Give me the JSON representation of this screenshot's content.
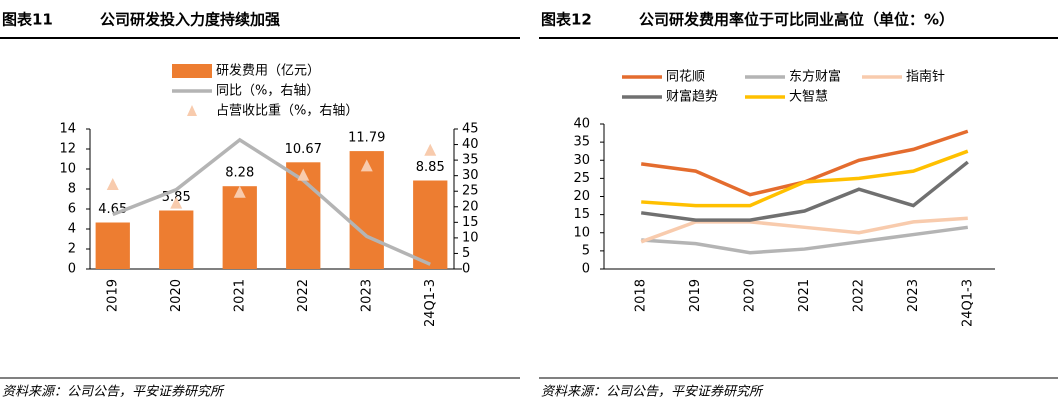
{
  "chart_data": [
    {
      "type": "bar",
      "figure_label": "图表11",
      "title": "公司研发投入力度持续加强",
      "source": "资料来源：公司公告，平安证券研究所",
      "categories": [
        "2019",
        "2020",
        "2021",
        "2022",
        "2023",
        "24Q1-3"
      ],
      "series": [
        {
          "name": "研发费用（亿元）",
          "type": "bar",
          "color": "#ed7d31",
          "values": [
            4.65,
            5.85,
            8.28,
            10.67,
            11.79,
            8.85
          ]
        },
        {
          "name": "同比（%，右轴）",
          "type": "line",
          "axis": "y2",
          "color": "#b4b4b4",
          "values": [
            17.5,
            25.5,
            41.5,
            28.5,
            10.5,
            1.5
          ]
        },
        {
          "name": "占营收比重（%，右轴）",
          "type": "scatter",
          "axis": "y2",
          "color": "#f8cbad",
          "values": [
            27,
            21,
            24.5,
            30,
            33,
            38
          ]
        }
      ],
      "ylim": [
        0,
        14
      ],
      "yticks": [
        0,
        2,
        4,
        6,
        8,
        10,
        12,
        14
      ],
      "y2lim": [
        0,
        45
      ],
      "y2ticks": [
        0,
        5,
        10,
        15,
        20,
        25,
        30,
        35,
        40,
        45
      ]
    },
    {
      "type": "line",
      "figure_label": "图表12",
      "title": "公司研发费用率位于可比同业高位（单位：%）",
      "source": "资料来源：公司公告，平安证券研究所",
      "categories": [
        "2018",
        "2019",
        "2020",
        "2021",
        "2022",
        "2023",
        "24Q1-3"
      ],
      "series": [
        {
          "name": "同花顺",
          "color": "#e46c2e",
          "values": [
            29,
            27,
            20.5,
            24,
            30,
            33,
            38
          ]
        },
        {
          "name": "东方财富",
          "color": "#b4b4b4",
          "values": [
            8,
            7,
            4.5,
            5.5,
            7.5,
            9.5,
            11.5
          ]
        },
        {
          "name": "指南针",
          "color": "#f8cbad",
          "values": [
            7.5,
            13,
            13,
            11.5,
            10,
            13,
            14
          ]
        },
        {
          "name": "财富趋势",
          "color": "#707070",
          "values": [
            15.5,
            13.5,
            13.5,
            16,
            22,
            17.5,
            29.5
          ]
        },
        {
          "name": "大智慧",
          "color": "#ffc000",
          "values": [
            18.5,
            17.5,
            17.5,
            24,
            25,
            27,
            32.5
          ]
        }
      ],
      "ylim": [
        0,
        40
      ],
      "yticks": [
        0,
        5,
        10,
        15,
        20,
        25,
        30,
        35,
        40
      ]
    }
  ]
}
